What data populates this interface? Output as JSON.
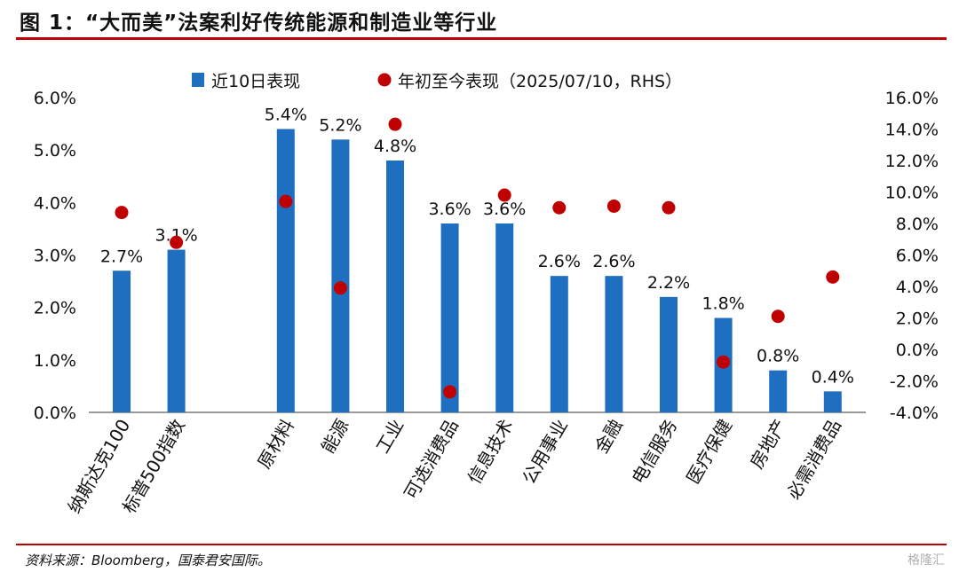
{
  "header": {
    "title": "图 1：“大而美”法案利好传统能源和制造业等行业"
  },
  "footer": {
    "source": "资料来源：Bloomberg，国泰君安国际。",
    "watermark": "格隆汇"
  },
  "chart_data": {
    "type": "bar",
    "categories": [
      "纳斯达克100",
      "标普500指数",
      "",
      "原材料",
      "能源",
      "工业",
      "可选消费品",
      "信息技术",
      "公用事业",
      "金融",
      "电信服务",
      "医疗保健",
      "房地产",
      "必需消费品"
    ],
    "series": [
      {
        "name": "近10日表现",
        "type": "bar",
        "axis": "left",
        "color": "#1f6fc1",
        "values": [
          2.7,
          3.1,
          null,
          5.4,
          5.2,
          4.8,
          3.6,
          3.6,
          2.6,
          2.6,
          2.2,
          1.8,
          0.8,
          0.4
        ],
        "labels": [
          "2.7%",
          "3.1%",
          "",
          "5.4%",
          "5.2%",
          "4.8%",
          "3.6%",
          "3.6%",
          "2.6%",
          "2.6%",
          "2.2%",
          "1.8%",
          "0.8%",
          "0.4%"
        ]
      },
      {
        "name": "年初至今表现（2025/07/10，RHS）",
        "type": "scatter",
        "axis": "right",
        "color": "#c00000",
        "values": [
          8.7,
          6.8,
          null,
          9.4,
          3.9,
          14.3,
          -2.7,
          9.8,
          9.0,
          9.1,
          9.0,
          -0.8,
          2.1,
          4.6
        ]
      }
    ],
    "y_left": {
      "min": 0,
      "max": 6,
      "ticks": [
        "0.0%",
        "1.0%",
        "2.0%",
        "3.0%",
        "4.0%",
        "5.0%",
        "6.0%"
      ]
    },
    "y_right": {
      "min": -4,
      "max": 16,
      "ticks": [
        "-4.0%",
        "-2.0%",
        "0.0%",
        "2.0%",
        "4.0%",
        "6.0%",
        "8.0%",
        "10.0%",
        "12.0%",
        "14.0%",
        "16.0%"
      ]
    },
    "legend": "top-center",
    "grid": false
  }
}
